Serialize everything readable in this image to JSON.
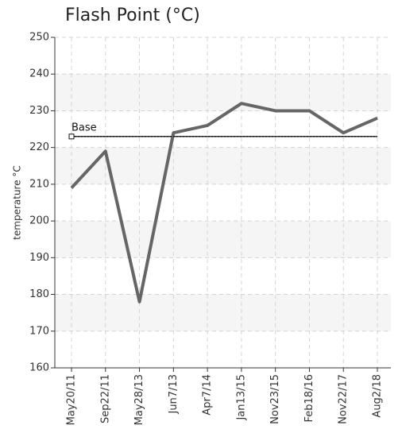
{
  "chart_data": {
    "type": "line",
    "title": "Flash Point (°C)",
    "y_label": "temperature °C",
    "categories": [
      "May20/11",
      "Sep22/11",
      "May28/13",
      "Jun7/13",
      "Apr7/14",
      "Jan13/15",
      "Nov23/15",
      "Feb18/16",
      "Nov22/17",
      "Aug2/18"
    ],
    "series": [
      {
        "name": "Flash Point",
        "color": "#666666",
        "values": [
          209,
          219,
          178,
          224,
          226,
          232,
          230,
          230,
          224,
          228
        ]
      }
    ],
    "reference": {
      "label": "Base",
      "value": 223,
      "color": "#333333"
    },
    "ylim": [
      160,
      250
    ],
    "yticks": [
      160,
      170,
      180,
      190,
      200,
      210,
      220,
      230,
      240,
      250
    ],
    "grid": true
  }
}
